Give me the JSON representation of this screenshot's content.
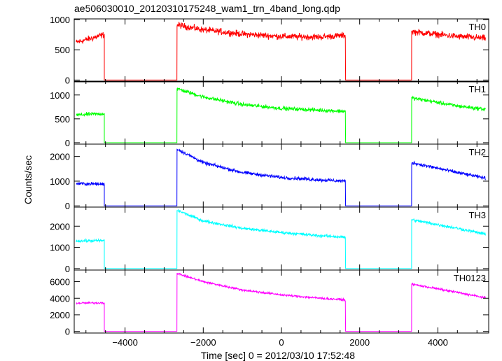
{
  "chart_data": {
    "type": "line",
    "title": "ae506030010_20120310175248_wam1_trn_4band_long.qdp",
    "xlabel": "Time [sec] 0 = 2012/03/10 17:52:48",
    "ylabel": "Counts/sec",
    "xlim": [
      -5300,
      5300
    ],
    "xticks": [
      -4000,
      -2000,
      0,
      2000,
      4000
    ],
    "xtick_labels": [
      "−4000",
      "−2000",
      "0",
      "2000",
      "4000"
    ],
    "grid": false,
    "x_segment_boundaries": [
      -5250,
      -4530,
      -2670,
      1640,
      3330,
      5220
    ],
    "panels": [
      {
        "name": "TH0",
        "color": "#ff0000",
        "ylim": [
          -30,
          1010
        ],
        "yticks": [
          0,
          500,
          1000
        ],
        "ytick_labels": [
          "0",
          "500",
          "1000"
        ],
        "x": [
          -5250,
          -4530,
          -2670,
          -2000,
          -1000,
          0,
          1000,
          1640,
          3330,
          4500,
          5220
        ],
        "y": [
          620,
          750,
          910,
          830,
          760,
          720,
          710,
          740,
          800,
          720,
          690
        ],
        "noise": 45
      },
      {
        "name": "TH1",
        "color": "#00ff00",
        "ylim": [
          -30,
          1290
        ],
        "yticks": [
          0,
          500,
          1000
        ],
        "ytick_labels": [
          "0",
          "500",
          "1000"
        ],
        "x": [
          -5250,
          -4530,
          -2670,
          -2000,
          -1000,
          0,
          1000,
          1640,
          3330,
          4500,
          5220
        ],
        "y": [
          580,
          610,
          1130,
          960,
          800,
          720,
          680,
          660,
          940,
          770,
          700
        ],
        "noise": 35
      },
      {
        "name": "TH2",
        "color": "#0000ff",
        "ylim": [
          -50,
          2500
        ],
        "yticks": [
          0,
          1000,
          2000
        ],
        "ytick_labels": [
          "0",
          "1000",
          "2000"
        ],
        "x": [
          -5250,
          -4530,
          -2670,
          -2000,
          -1000,
          0,
          1000,
          1640,
          3330,
          4500,
          5220
        ],
        "y": [
          900,
          880,
          2300,
          1750,
          1350,
          1150,
          1050,
          1000,
          1750,
          1350,
          1120
        ],
        "noise": 60
      },
      {
        "name": "TH3",
        "color": "#00ffff",
        "ylim": [
          -70,
          2900
        ],
        "yticks": [
          0,
          1000,
          2000
        ],
        "ytick_labels": [
          "0",
          "1000",
          "2000"
        ],
        "x": [
          -5250,
          -4530,
          -2670,
          -2000,
          -1000,
          0,
          1000,
          1640,
          3330,
          4500,
          5220
        ],
        "y": [
          1300,
          1320,
          2750,
          2250,
          1900,
          1700,
          1550,
          1480,
          2300,
          1900,
          1620
        ],
        "noise": 60
      },
      {
        "name": "TH0123",
        "color": "#ff00ff",
        "ylim": [
          -200,
          7400
        ],
        "yticks": [
          0,
          2000,
          4000,
          6000
        ],
        "ytick_labels": [
          "0",
          "2000",
          "4000",
          "6000"
        ],
        "x": [
          -5250,
          -4530,
          -2670,
          -2000,
          -1000,
          0,
          1000,
          1640,
          3330,
          4500,
          5220
        ],
        "y": [
          3400,
          3450,
          7000,
          6000,
          5000,
          4400,
          4000,
          3800,
          5700,
          4700,
          4050
        ],
        "noise": 110
      }
    ]
  }
}
